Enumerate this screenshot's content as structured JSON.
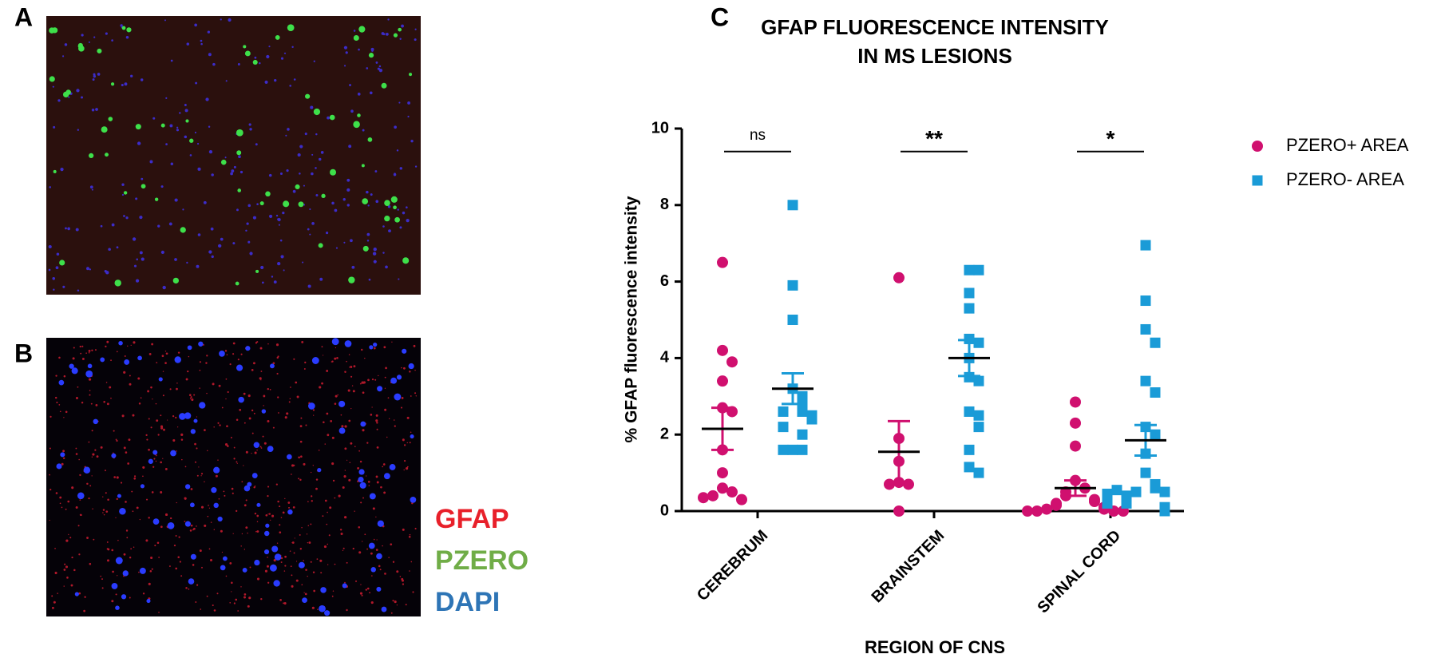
{
  "panel_labels": [
    "A",
    "B"
  ],
  "stain_labels": [
    {
      "text": "GFAP",
      "color": "#e8202a"
    },
    {
      "text": "PZERO",
      "color": "#70ad47"
    },
    {
      "text": "DAPI",
      "color": "#2e75b6"
    }
  ],
  "chart_data": {
    "type": "dotplot",
    "panel_label": "C",
    "title": [
      "GFAP FLUORESCENCE INTENSITY",
      "IN MS LESIONS"
    ],
    "x_label": "REGION OF CNS",
    "y_label": "% GFAP fluorescence intensity",
    "categories": [
      "CEREBRUM",
      "BRAINSTEM",
      "SPINAL CORD"
    ],
    "ylim": [
      0,
      10
    ],
    "yticks": [
      0,
      2,
      4,
      6,
      8,
      10
    ],
    "significance": [
      "ns",
      "**",
      "*"
    ],
    "legend": "top-right",
    "series": [
      {
        "name": "PZERO+ AREA",
        "color": "#d0106f",
        "marker": "circle",
        "values": [
          [
            6.5,
            4.2,
            3.9,
            3.4,
            2.7,
            2.6,
            1.6,
            1.0,
            0.6,
            0.5,
            0.4,
            0.3,
            0.35
          ],
          [
            6.1,
            1.9,
            1.3,
            0.75,
            0.7,
            0.7,
            0.0
          ],
          [
            2.85,
            2.3,
            1.7,
            0.8,
            0.6,
            0.5,
            0.4,
            0.3,
            0.25,
            0.2,
            0.15,
            0.1,
            0.05,
            0.05,
            0.0,
            0.0,
            0.0,
            0.0
          ]
        ],
        "mean": [
          2.15,
          1.55,
          0.6
        ],
        "sem": [
          0.55,
          0.8,
          0.2
        ]
      },
      {
        "name": "PZERO- AREA",
        "color": "#1a9bd7",
        "marker": "square",
        "values": [
          [
            8.0,
            5.9,
            5.0,
            3.2,
            3.0,
            2.8,
            2.6,
            2.6,
            2.5,
            2.4,
            2.2,
            2.0,
            1.6,
            1.6,
            1.6
          ],
          [
            6.3,
            6.3,
            5.7,
            5.3,
            4.5,
            4.4,
            4.0,
            3.5,
            3.4,
            2.6,
            2.5,
            2.2,
            1.6,
            1.15,
            1.0
          ],
          [
            6.95,
            5.5,
            4.75,
            4.4,
            3.4,
            3.1,
            2.2,
            2.0,
            1.5,
            1.0,
            0.7,
            0.6,
            0.5,
            0.5,
            0.4,
            0.3,
            0.2,
            0.1,
            0.0,
            0.55,
            0.45,
            0.2
          ]
        ],
        "mean": [
          3.2,
          4.0,
          1.85
        ],
        "sem": [
          0.4,
          0.47,
          0.4
        ]
      }
    ]
  }
}
